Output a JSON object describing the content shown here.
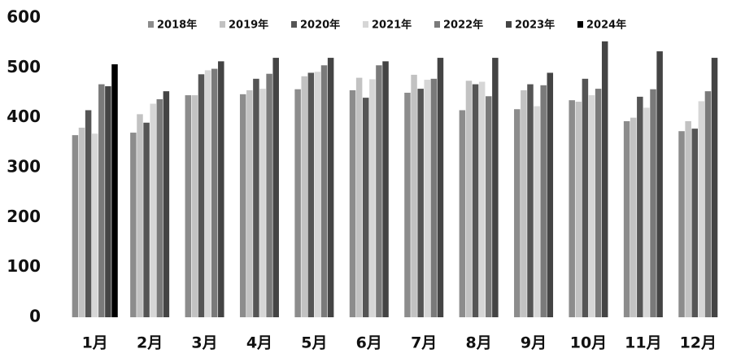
{
  "chart_data": {
    "type": "bar",
    "categories": [
      "1月",
      "2月",
      "3月",
      "4月",
      "5月",
      "6月",
      "7月",
      "8月",
      "9月",
      "10月",
      "11月",
      "12月"
    ],
    "series": [
      {
        "name": "2018年",
        "color": "#8c8c8c",
        "values": [
          365,
          370,
          445,
          447,
          457,
          455,
          450,
          415,
          417,
          435,
          393,
          373
        ]
      },
      {
        "name": "2019年",
        "color": "#c2c2c2",
        "values": [
          380,
          407,
          445,
          455,
          483,
          480,
          486,
          474,
          455,
          432,
          400,
          393
        ]
      },
      {
        "name": "2020年",
        "color": "#555555",
        "values": [
          415,
          390,
          487,
          478,
          490,
          440,
          458,
          467,
          467,
          478,
          442,
          378
        ]
      },
      {
        "name": "2021年",
        "color": "#d6d6d6",
        "values": [
          368,
          428,
          495,
          458,
          492,
          477,
          476,
          472,
          423,
          445,
          420,
          433
        ]
      },
      {
        "name": "2022年",
        "color": "#7a7a7a",
        "values": [
          467,
          437,
          498,
          488,
          505,
          505,
          478,
          443,
          465,
          458,
          457,
          453
        ]
      },
      {
        "name": "2023年",
        "color": "#444444",
        "values": [
          463,
          453,
          513,
          520,
          520,
          513,
          520,
          520,
          490,
          553,
          533,
          520
        ]
      },
      {
        "name": "2024年",
        "color": "#000000",
        "values": [
          507,
          null,
          null,
          null,
          null,
          null,
          null,
          null,
          null,
          null,
          null,
          null
        ]
      }
    ],
    "ylim": [
      0,
      600
    ],
    "yticks": [
      0,
      100,
      200,
      300,
      400,
      500,
      600
    ],
    "grid": false,
    "legend": "top"
  }
}
